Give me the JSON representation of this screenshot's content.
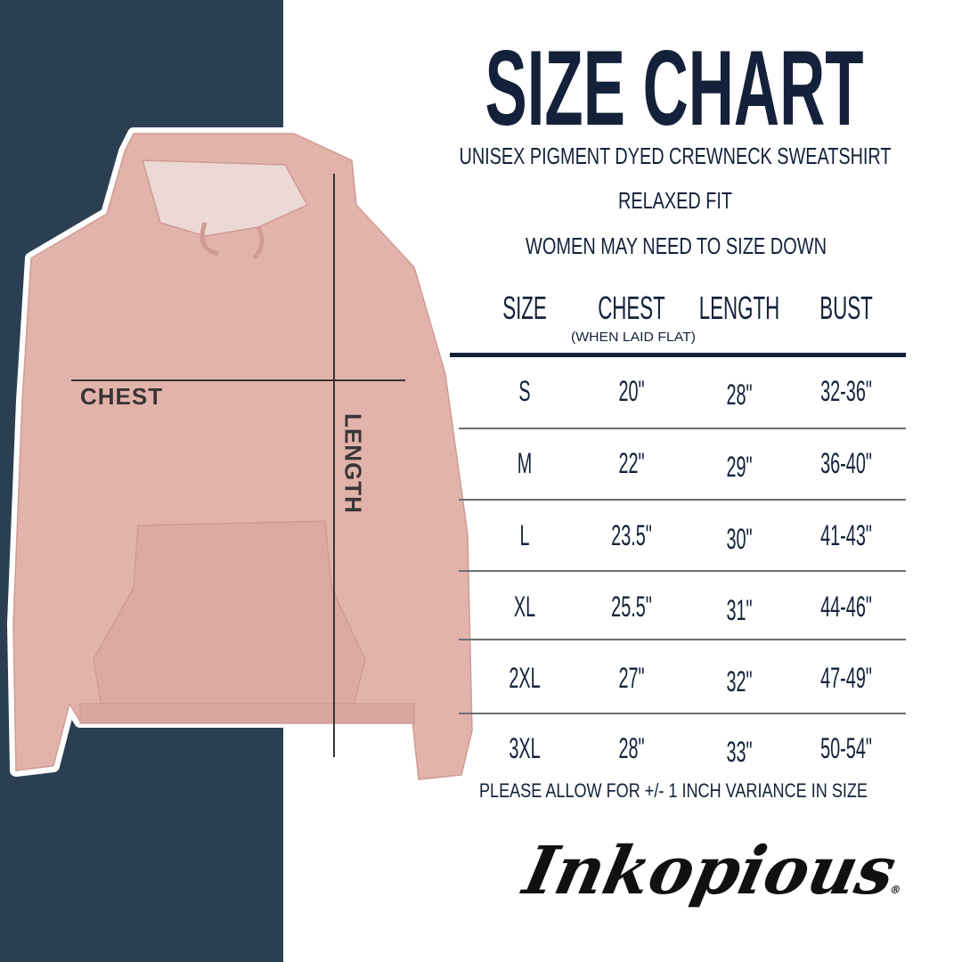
{
  "title": "SIZE CHART",
  "subtitle": "UNISEX PIGMENT DYED CREWNECK SWEATSHIRT",
  "fit": "RELAXED FIT",
  "advice": "WOMEN MAY NEED TO SIZE DOWN",
  "table": {
    "headers": [
      "SIZE",
      "CHEST",
      "LENGTH",
      "BUST"
    ],
    "chest_note": "(WHEN LAID FLAT)",
    "rows": [
      [
        "S",
        "20\"",
        "28\"",
        "32-36\""
      ],
      [
        "M",
        "22\"",
        "29\"",
        "36-40\""
      ],
      [
        "L",
        "23.5\"",
        "30\"",
        "41-43\""
      ],
      [
        "XL",
        "25.5\"",
        "31\"",
        "44-46\""
      ],
      [
        "2XL",
        "27\"",
        "32\"",
        "47-49\""
      ],
      [
        "3XL",
        "28\"",
        "33\"",
        "50-54\""
      ]
    ]
  },
  "variance_note": "PLEASE ALLOW FOR +/- 1 INCH VARIANCE IN SIZE",
  "garment_labels": {
    "chest": "CHEST",
    "length": "LENGTH"
  },
  "brand": "Inkopious",
  "colors": {
    "panel": "#2b3f52",
    "text": "#14213a",
    "garment": "#e2b3ab"
  }
}
